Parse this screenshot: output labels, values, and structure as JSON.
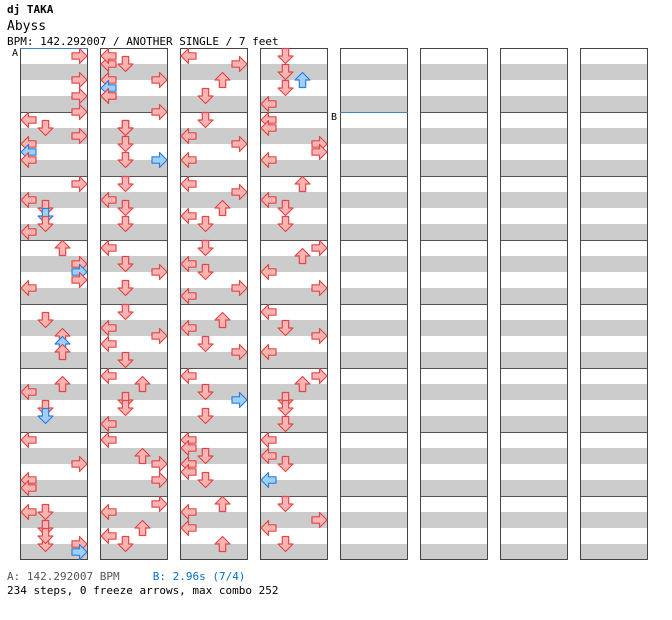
{
  "header": {
    "artist": "dj TAKA",
    "title": "Abyss",
    "bpm_label": "BPM:",
    "bpm": "142.292007",
    "mode": "ANOTHER SINGLE",
    "difficulty": "7 feet"
  },
  "bpm_markers": {
    "a_label": "A",
    "b_label": "B"
  },
  "footer": {
    "a_text": "A: 142.292007 BPM",
    "b_text": "B: 2.96s (7/4)",
    "stats": "234 steps, 0 freeze arrows, max combo 252"
  },
  "colors": {
    "arrow_red_fill": "#ffb3b3",
    "arrow_red_stroke": "#e04848",
    "arrow_blue_fill": "#9fcfff",
    "arrow_blue_stroke": "#2c7fd8",
    "stripe": "#cccccc",
    "bpm_line": "#4080c0"
  },
  "chart_data": {
    "type": "step-chart",
    "columns_count": 8,
    "measures_per_column": 8,
    "lanes": [
      "left",
      "down",
      "up",
      "right"
    ],
    "notes": [
      [
        7,
        0.5,
        "L",
        "r"
      ],
      [
        7,
        1.5,
        "D",
        "r"
      ],
      [
        8,
        0.5,
        "L",
        "r"
      ],
      [
        8,
        1.0,
        "R",
        "r"
      ],
      [
        8,
        1.5,
        "L",
        "r"
      ],
      [
        8,
        2.0,
        "R",
        "r"
      ],
      [
        9,
        0.5,
        "D",
        "r"
      ],
      [
        9,
        1.5,
        "D",
        "r"
      ],
      [
        0,
        0.25,
        "R",
        "r"
      ],
      [
        0,
        1.0,
        "R",
        "r"
      ],
      [
        0,
        1.5,
        "R",
        "r"
      ],
      [
        0,
        2.0,
        "R",
        "r"
      ],
      [
        1,
        0.25,
        "L",
        "r"
      ],
      [
        1,
        0.5,
        "D",
        "r"
      ],
      [
        1,
        0.75,
        "R",
        "r"
      ],
      [
        1,
        1.0,
        "L",
        "r"
      ],
      [
        1,
        1.25,
        "L",
        "b"
      ],
      [
        1,
        1.5,
        "L",
        "r"
      ],
      [
        2,
        0.25,
        "R",
        "r"
      ],
      [
        2,
        0.75,
        "L",
        "r"
      ],
      [
        2,
        1.0,
        "D",
        "r"
      ],
      [
        2,
        1.25,
        "D",
        "b"
      ],
      [
        2,
        1.5,
        "D",
        "r"
      ],
      [
        2,
        1.75,
        "L",
        "r"
      ],
      [
        3,
        0.25,
        "U",
        "r"
      ],
      [
        3,
        0.75,
        "R",
        "r"
      ],
      [
        3,
        1.0,
        "R",
        "b"
      ],
      [
        3,
        1.25,
        "R",
        "r"
      ],
      [
        3,
        1.5,
        "L",
        "r"
      ],
      [
        4,
        0.5,
        "D",
        "r"
      ],
      [
        4,
        1.0,
        "U",
        "r"
      ],
      [
        4,
        1.25,
        "U",
        "b"
      ],
      [
        4,
        1.5,
        "U",
        "r"
      ],
      [
        5,
        0.5,
        "U",
        "r"
      ],
      [
        5,
        0.75,
        "L",
        "r"
      ],
      [
        5,
        1.25,
        "D",
        "r"
      ],
      [
        5,
        1.5,
        "D",
        "b"
      ],
      [
        6,
        0.25,
        "L",
        "r"
      ],
      [
        6,
        1.0,
        "R",
        "r"
      ],
      [
        6,
        1.5,
        "L",
        "r"
      ],
      [
        6,
        1.75,
        "L",
        "r"
      ],
      [
        7,
        0.5,
        "D",
        "r"
      ],
      [
        7,
        1.0,
        "D",
        "r"
      ],
      [
        7,
        1.25,
        "D",
        "r"
      ],
      [
        7,
        1.5,
        "R",
        "r"
      ],
      [
        7,
        1.75,
        "R",
        "b"
      ],
      [
        8,
        0.25,
        "L",
        "r"
      ],
      [
        8,
        0.5,
        "D",
        "r"
      ],
      [
        8,
        1.0,
        "L",
        "r"
      ],
      [
        8,
        1.25,
        "L",
        "b"
      ],
      [
        8,
        1.5,
        "L",
        "r"
      ],
      [
        9,
        0.5,
        "D",
        "r"
      ],
      [
        9,
        1.0,
        "D",
        "r"
      ],
      [
        9,
        1.5,
        "R",
        "b"
      ],
      [
        10,
        0.25,
        "D",
        "r"
      ],
      [
        10,
        0.75,
        "L",
        "r"
      ],
      [
        10,
        1.0,
        "D",
        "r"
      ],
      [
        10,
        1.5,
        "D",
        "r"
      ],
      [
        11,
        0.25,
        "L",
        "r"
      ],
      [
        11,
        0.75,
        "D",
        "r"
      ],
      [
        11,
        1.0,
        "R",
        "r"
      ],
      [
        11,
        1.5,
        "D",
        "r"
      ],
      [
        12,
        0.25,
        "D",
        "r"
      ],
      [
        12,
        0.75,
        "L",
        "r"
      ],
      [
        12,
        1.0,
        "R",
        "r"
      ],
      [
        12,
        1.25,
        "L",
        "r"
      ],
      [
        12,
        1.75,
        "D",
        "r"
      ],
      [
        13,
        0.25,
        "L",
        "r"
      ],
      [
        13,
        0.5,
        "U",
        "r"
      ],
      [
        13,
        1.0,
        "D",
        "r"
      ],
      [
        13,
        1.25,
        "D",
        "r"
      ],
      [
        13,
        1.75,
        "L",
        "r"
      ],
      [
        14,
        0.25,
        "L",
        "r"
      ],
      [
        14,
        0.75,
        "U",
        "r"
      ],
      [
        14,
        1.0,
        "R",
        "r"
      ],
      [
        14,
        1.5,
        "R",
        "r"
      ],
      [
        15,
        0.25,
        "R",
        "r"
      ],
      [
        15,
        0.5,
        "L",
        "r"
      ],
      [
        15,
        1.0,
        "U",
        "r"
      ],
      [
        15,
        1.25,
        "L",
        "r"
      ],
      [
        15,
        1.5,
        "D",
        "r"
      ],
      [
        16,
        0.25,
        "L",
        "r"
      ],
      [
        16,
        0.5,
        "R",
        "r"
      ],
      [
        16,
        1.0,
        "U",
        "r"
      ],
      [
        16,
        1.5,
        "D",
        "r"
      ],
      [
        17,
        0.25,
        "D",
        "r"
      ],
      [
        17,
        0.75,
        "L",
        "r"
      ],
      [
        17,
        1.0,
        "R",
        "r"
      ],
      [
        17,
        1.5,
        "L",
        "r"
      ],
      [
        18,
        0.25,
        "L",
        "r"
      ],
      [
        18,
        0.5,
        "R",
        "r"
      ],
      [
        18,
        1.0,
        "U",
        "r"
      ],
      [
        18,
        1.25,
        "L",
        "r"
      ],
      [
        18,
        1.5,
        "D",
        "r"
      ],
      [
        19,
        0.25,
        "D",
        "r"
      ],
      [
        19,
        0.75,
        "L",
        "r"
      ],
      [
        19,
        1.0,
        "D",
        "r"
      ],
      [
        19,
        1.5,
        "R",
        "r"
      ],
      [
        19,
        1.75,
        "L",
        "r"
      ],
      [
        20,
        0.5,
        "U",
        "r"
      ],
      [
        20,
        0.75,
        "L",
        "r"
      ],
      [
        20,
        1.25,
        "D",
        "r"
      ],
      [
        20,
        1.5,
        "R",
        "r"
      ],
      [
        21,
        0.25,
        "L",
        "r"
      ],
      [
        21,
        0.75,
        "D",
        "r"
      ],
      [
        21,
        1.0,
        "R",
        "b"
      ],
      [
        21,
        1.5,
        "D",
        "r"
      ],
      [
        22,
        0.25,
        "L",
        "r"
      ],
      [
        22,
        0.5,
        "L",
        "r"
      ],
      [
        22,
        0.75,
        "D",
        "r"
      ],
      [
        22,
        1.0,
        "L",
        "r"
      ],
      [
        22,
        1.25,
        "L",
        "r"
      ],
      [
        22,
        1.5,
        "D",
        "r"
      ],
      [
        23,
        0.25,
        "U",
        "r"
      ],
      [
        23,
        0.5,
        "L",
        "r"
      ],
      [
        23,
        1.0,
        "L",
        "r"
      ],
      [
        23,
        1.5,
        "U",
        "r"
      ],
      [
        24,
        0.25,
        "D",
        "r"
      ],
      [
        24,
        0.75,
        "D",
        "r"
      ],
      [
        24,
        1.0,
        "U",
        "b"
      ],
      [
        24,
        1.25,
        "D",
        "r"
      ],
      [
        24,
        1.75,
        "L",
        "r"
      ],
      [
        25,
        0.25,
        "L",
        "r"
      ],
      [
        25,
        0.5,
        "L",
        "r"
      ],
      [
        25,
        1.0,
        "R",
        "r"
      ],
      [
        25,
        1.25,
        "R",
        "r"
      ],
      [
        25,
        1.5,
        "L",
        "r"
      ],
      [
        26,
        0.25,
        "U",
        "r"
      ],
      [
        26,
        0.75,
        "L",
        "r"
      ],
      [
        26,
        1.0,
        "D",
        "r"
      ],
      [
        26,
        1.5,
        "D",
        "r"
      ],
      [
        27,
        0.25,
        "R",
        "r"
      ],
      [
        27,
        0.5,
        "U",
        "r"
      ],
      [
        27,
        1.0,
        "L",
        "r"
      ],
      [
        27,
        1.5,
        "R",
        "r"
      ],
      [
        28,
        0.25,
        "L",
        "r"
      ],
      [
        28,
        0.75,
        "D",
        "r"
      ],
      [
        28,
        1.0,
        "R",
        "r"
      ],
      [
        28,
        1.5,
        "L",
        "r"
      ],
      [
        29,
        0.25,
        "R",
        "r"
      ],
      [
        29,
        0.5,
        "U",
        "r"
      ],
      [
        29,
        1.0,
        "D",
        "r"
      ],
      [
        29,
        1.25,
        "D",
        "r"
      ],
      [
        29,
        1.75,
        "D",
        "r"
      ],
      [
        30,
        0.25,
        "L",
        "r"
      ],
      [
        30,
        0.75,
        "L",
        "r"
      ],
      [
        30,
        1.0,
        "D",
        "r"
      ],
      [
        30,
        1.5,
        "L",
        "b"
      ],
      [
        31,
        0.25,
        "D",
        "r"
      ],
      [
        31,
        0.75,
        "R",
        "r"
      ],
      [
        31,
        1.0,
        "L",
        "r"
      ],
      [
        31,
        1.5,
        "D",
        "r"
      ]
    ]
  }
}
